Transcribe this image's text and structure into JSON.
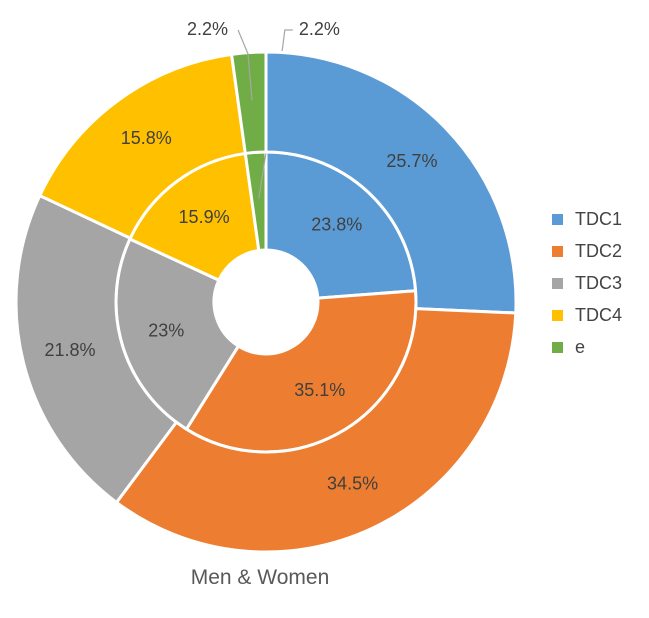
{
  "chart_data": {
    "type": "pie",
    "title": "Men & Women",
    "categories": [
      "TDC1",
      "TDC2",
      "TDC3",
      "TDC4",
      "e"
    ],
    "colors": [
      "#5b9bd5",
      "#ed7d31",
      "#a5a5a5",
      "#ffc000",
      "#70ad47"
    ],
    "series": [
      {
        "ring": "inner",
        "values": [
          23.8,
          35.1,
          23.0,
          15.9,
          2.2
        ],
        "labels": [
          "23.8%",
          "35.1%",
          "23%",
          "15.9%",
          "2.2%"
        ]
      },
      {
        "ring": "outer",
        "values": [
          25.7,
          34.5,
          21.8,
          15.8,
          2.2
        ],
        "labels": [
          "25.7%",
          "34.5%",
          "21.8%",
          "15.8%",
          "2.2%"
        ]
      }
    ],
    "legend_position": "right"
  }
}
